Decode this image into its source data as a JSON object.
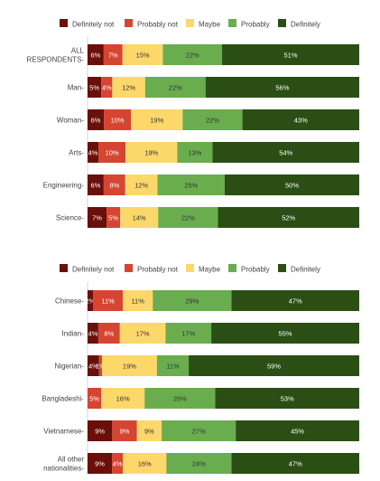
{
  "chart_data": [
    {
      "type": "bar",
      "stacked": true,
      "orientation": "horizontal",
      "legend_position": "top",
      "grid": false,
      "xlim": [
        0,
        100
      ],
      "series_names": [
        "Definitely not",
        "Probably not",
        "Maybe",
        "Probably",
        "Definitely"
      ],
      "categories": [
        [
          "ALL",
          "RESPONDENTS"
        ],
        [
          "Man"
        ],
        [
          "Woman"
        ],
        [
          "Arts"
        ],
        [
          "Engineering"
        ],
        [
          "Science"
        ]
      ],
      "values": [
        [
          6,
          7,
          15,
          22,
          51
        ],
        [
          5,
          4,
          12,
          22,
          56
        ],
        [
          6,
          10,
          19,
          22,
          43
        ],
        [
          4,
          10,
          19,
          13,
          54
        ],
        [
          6,
          8,
          12,
          25,
          50
        ],
        [
          7,
          5,
          14,
          22,
          52
        ]
      ]
    },
    {
      "type": "bar",
      "stacked": true,
      "orientation": "horizontal",
      "legend_position": "top",
      "grid": false,
      "xlim": [
        0,
        100
      ],
      "series_names": [
        "Definitely not",
        "Probably not",
        "Maybe",
        "Probably",
        "Definitely"
      ],
      "categories": [
        [
          "Chinese"
        ],
        [
          "Indian"
        ],
        [
          "Nigerian"
        ],
        [
          "Bangladeshi"
        ],
        [
          "Vietnamese"
        ],
        [
          "All other",
          "nationalities"
        ]
      ],
      "values": [
        [
          2,
          11,
          11,
          29,
          47
        ],
        [
          4,
          8,
          17,
          17,
          55
        ],
        [
          4,
          1,
          19,
          11,
          59
        ],
        [
          0,
          5,
          16,
          26,
          53
        ],
        [
          9,
          9,
          9,
          27,
          45
        ],
        [
          9,
          4,
          16,
          24,
          47
        ]
      ]
    }
  ],
  "colors": [
    "#6b0f0a",
    "#d64531",
    "#fcd86b",
    "#6aad4f",
    "#2b4e14"
  ],
  "label_colors": [
    "#ffffff",
    "#ffffff",
    "#333333",
    "#333333",
    "#ffffff"
  ],
  "percent_suffix": "%"
}
